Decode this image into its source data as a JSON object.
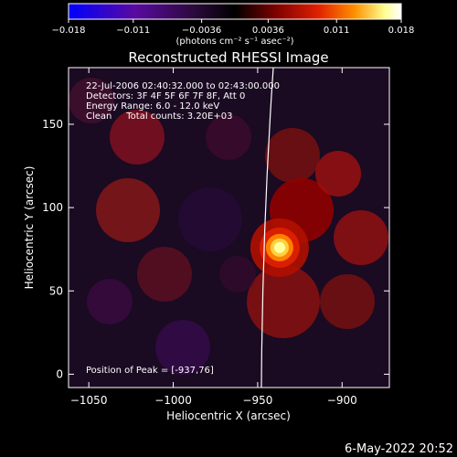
{
  "chart_data": {
    "type": "heatmap",
    "title": "Reconstructed RHESSI Image",
    "xlabel": "Heliocentric X (arcsec)",
    "ylabel": "Heliocentric Y (arcsec)",
    "xlim": [
      -1062,
      -872
    ],
    "ylim": [
      -8,
      184
    ],
    "x_ticks": [
      -1050,
      -1000,
      -950,
      -900
    ],
    "x_tick_labels": [
      "−1050",
      "−1000",
      "−950",
      "−900"
    ],
    "y_ticks": [
      0,
      50,
      100,
      150
    ],
    "y_tick_labels": [
      "0",
      "50",
      "100",
      "150"
    ],
    "colorbar": {
      "min": -0.018,
      "max": 0.018,
      "ticks": [
        -0.018,
        -0.011,
        -0.0036,
        0.0036,
        0.011,
        0.018
      ],
      "tick_labels": [
        "−0.018",
        "−0.011",
        "−0.0036",
        "0.0036",
        "0.011",
        "0.018"
      ],
      "unit_label": "(photons cm⁻² s⁻¹ asec⁻²)",
      "colors": [
        "#0000ff",
        "#5a0aa0",
        "#2a0a3a",
        "#000000",
        "#7a0000",
        "#e02000",
        "#ff9000",
        "#ffff90",
        "#ffffff"
      ]
    },
    "annotations": [
      "22-Jul-2006 02:40:32.000 to 02:43:00.000",
      "Detectors: 3F 4F 5F 6F 7F 8F, Att 0",
      "Energy Range: 6.0 - 12.0 keV",
      "Clean     Total counts: 3.20E+03"
    ],
    "peak_label": "Position of Peak = [-937,76]",
    "peak": {
      "x": -937,
      "y": 76
    },
    "grid": false
  },
  "footer": {
    "timestamp": "6-May-2022 20:52"
  }
}
